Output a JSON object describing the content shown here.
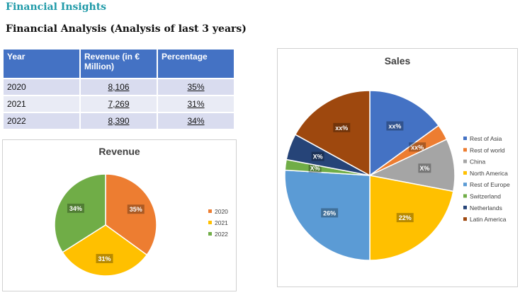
{
  "header": {
    "brand": "Financial Insights",
    "subtitle": "Financial Analysis (Analysis of last 3 years)"
  },
  "table": {
    "headers": [
      "Year",
      "Revenue (in € Million)",
      "Percentage"
    ],
    "rows": [
      {
        "year": "2020",
        "revenue": "8,106",
        "percentage": "35%"
      },
      {
        "year": "2021",
        "revenue": "7,269",
        "percentage": "31%"
      },
      {
        "year": "2022",
        "revenue": "8,390",
        "percentage": "34%"
      }
    ]
  },
  "chart_data": [
    {
      "type": "pie",
      "title": "Revenue",
      "categories": [
        "2020",
        "2021",
        "2022"
      ],
      "values": [
        35,
        31,
        34
      ],
      "labels": [
        "35%",
        "31%",
        "34%"
      ],
      "colors": [
        "#ed7d31",
        "#ffc000",
        "#70ad47"
      ],
      "legend": "right"
    },
    {
      "type": "pie",
      "title": "Sales",
      "categories": [
        "Rest of Asia",
        "Rest of world",
        "China",
        "North America",
        "Rest of Europe",
        "Switzerland",
        "Netherlands",
        "Latin America"
      ],
      "values": [
        15,
        3,
        10,
        22,
        26,
        2,
        5,
        17
      ],
      "labels": [
        "xx%",
        "xx%",
        "X%",
        "22%",
        "26%",
        "X%",
        "X%",
        "xx%"
      ],
      "colors": [
        "#4472c4",
        "#ed7d31",
        "#a5a5a5",
        "#ffc000",
        "#5b9bd5",
        "#70ad47",
        "#264478",
        "#9e480e"
      ],
      "legend": "right"
    }
  ]
}
